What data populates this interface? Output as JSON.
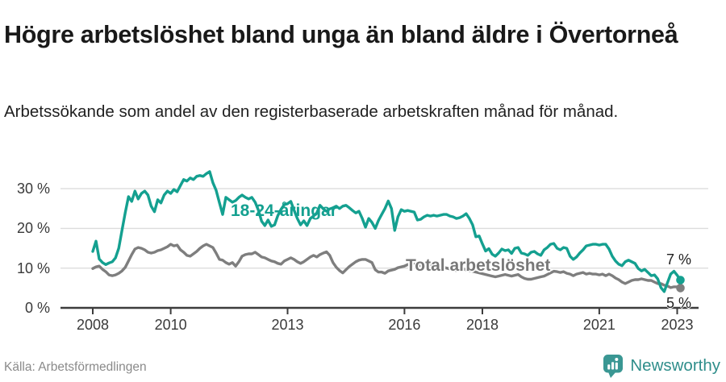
{
  "header": {
    "title": "Högre arbetslöshet bland unga än bland äldre i Övertorneå",
    "subtitle": "Arbetssökande som andel av den registerbaserade arbetskraften månad för månad."
  },
  "chart_data": {
    "type": "line",
    "title": "Högre arbetslöshet bland unga än bland äldre i Övertorneå",
    "subtitle": "Arbetssökande som andel av den registerbaserade arbetskraften månad för månad.",
    "unit": "%",
    "frequency": "monthly",
    "x_axis": {
      "tick_years": [
        2008,
        2010,
        2013,
        2016,
        2018,
        2021,
        2023
      ],
      "range_start": 2008,
      "range_end": 2023
    },
    "y_axis": {
      "tick_values": [
        0,
        10,
        20,
        30
      ],
      "tick_labels": [
        "0 %",
        "10 %",
        "20 %",
        "30 %"
      ],
      "ylim": [
        0,
        36
      ],
      "grid": "horizontal"
    },
    "legend": "inline-labels",
    "series": [
      {
        "name": "18-24-åringar",
        "color": "#14a090",
        "end_label": "7 %",
        "final_value": 7,
        "values": [
          14.2,
          16.8,
          12.3,
          11.4,
          10.9,
          11.3,
          11.6,
          12.6,
          15,
          19.5,
          24,
          28,
          26.8,
          29.4,
          27.4,
          28.8,
          29.4,
          28.4,
          25.6,
          24.2,
          27.2,
          26.4,
          28.4,
          29.4,
          28.8,
          29.8,
          29.2,
          30.8,
          32.3,
          31.9,
          32.7,
          32.3,
          33.1,
          33.3,
          33.1,
          33.8,
          34.3,
          31.5,
          29.6,
          26.5,
          23.5,
          27.8,
          27.2,
          26.6,
          27,
          27.8,
          28.4,
          27.8,
          27.4,
          27.8,
          26.6,
          24.6,
          21.8,
          20.7,
          22.1,
          20.5,
          20.9,
          23.2,
          24.8,
          26,
          26.2,
          26.8,
          24.6,
          22.5,
          20.9,
          21.9,
          20.7,
          22.5,
          23.1,
          23.9,
          25.8,
          24.9,
          24.3,
          24.9,
          25.2,
          25.6,
          25,
          25.6,
          25.8,
          25.2,
          24.5,
          23.9,
          24.3,
          22.5,
          20.3,
          22.5,
          21.5,
          20,
          22,
          23.5,
          25,
          26.9,
          25,
          19.5,
          22.9,
          24.7,
          24.3,
          24.5,
          24.3,
          24.1,
          22.1,
          22.3,
          22.9,
          23.3,
          23.1,
          23.3,
          23.1,
          23.3,
          23.5,
          23.5,
          23.1,
          22.9,
          22.5,
          22.7,
          23.1,
          23.7,
          22.5,
          20.9,
          17.9,
          18.1,
          16.1,
          14.3,
          14.9,
          13.5,
          13,
          13.8,
          14.8,
          14.4,
          14.6,
          13.7,
          15,
          15.2,
          13.8,
          13.6,
          13.2,
          14,
          14.2,
          13.6,
          13.2,
          14.6,
          15.2,
          16,
          16.2,
          15,
          14.6,
          15.2,
          15,
          13,
          12.2,
          12.8,
          13.8,
          14.6,
          15.6,
          15.8,
          16,
          16,
          15.8,
          16,
          16,
          14.8,
          13,
          11.8,
          11,
          10.6,
          11.6,
          12,
          11.6,
          11.2,
          9.9,
          9.3,
          9.7,
          8.9,
          8.1,
          8.3,
          7.3,
          5.1,
          4.1,
          6.3,
          8.5,
          9.2,
          8.2,
          7
        ]
      },
      {
        "name": "Total arbetslöshet",
        "color": "#7e7e7e",
        "end_label": "5 %",
        "final_value": 5,
        "values": [
          9.9,
          10.3,
          10.5,
          9.7,
          9.1,
          8.3,
          8.1,
          8.3,
          8.7,
          9.3,
          10.2,
          11.8,
          13.4,
          14.8,
          15.2,
          15,
          14.6,
          14,
          13.8,
          14,
          14.4,
          14.6,
          15,
          15.4,
          16,
          15.6,
          15.8,
          14.6,
          14,
          13.2,
          13,
          13.6,
          14.2,
          15,
          15.6,
          16,
          15.6,
          15.2,
          13.8,
          12.2,
          12,
          11.4,
          11,
          11.4,
          10.5,
          11.6,
          13,
          13.4,
          13.6,
          13.6,
          14,
          13.4,
          12.8,
          12.6,
          12.2,
          11.8,
          11.6,
          11.2,
          11,
          11.8,
          12.2,
          12.6,
          12.2,
          11.6,
          11.2,
          11.6,
          12.2,
          12.8,
          13.2,
          12.8,
          13.4,
          13.8,
          14.1,
          13.2,
          11.4,
          10.2,
          9.4,
          8.8,
          9.6,
          10.4,
          11,
          11.6,
          12,
          12.2,
          12.2,
          11.8,
          11.4,
          9.6,
          9,
          9,
          8.7,
          9.3,
          9.5,
          9.7,
          10.1,
          10.3,
          10.5,
          10.9,
          11.2,
          11,
          10.8,
          10.6,
          10.4,
          10.6,
          10.8,
          10.6,
          10.4,
          10.2,
          10.2,
          10,
          9.8,
          9.6,
          9.4,
          9.6,
          9.8,
          9.6,
          9.4,
          9.2,
          9,
          8.8,
          8.6,
          8.4,
          8.2,
          8,
          7.8,
          8,
          8.2,
          8.4,
          8.2,
          8,
          8.2,
          8.4,
          7.8,
          7.4,
          7.2,
          7.2,
          7.4,
          7.6,
          7.8,
          8,
          8.4,
          8.8,
          9.2,
          9.1,
          8.9,
          9.1,
          8.7,
          8.5,
          8.1,
          8.5,
          8.7,
          8.9,
          8.5,
          8.7,
          8.5,
          8.5,
          8.3,
          8.5,
          8.1,
          8.5,
          8.1,
          7.5,
          7.1,
          6.5,
          6.1,
          6.5,
          6.9,
          7.1,
          7.1,
          7.3,
          7.1,
          6.9,
          6.9,
          6.5,
          6.1,
          6.1,
          5.7,
          5.5,
          5.1,
          5.3,
          5.3,
          5
        ]
      }
    ]
  },
  "footer": {
    "source": "Källa: Arbetsförmedlingen",
    "brand": "Newsworthy"
  },
  "colors": {
    "accent_teal": "#14a090",
    "series_gray": "#7e7e7e",
    "grid": "#dcdcdc",
    "axis": "#3c3c3c",
    "title_text": "#191919",
    "muted_text": "#8a8a8a",
    "brand_teal": "#2f8e8b"
  }
}
